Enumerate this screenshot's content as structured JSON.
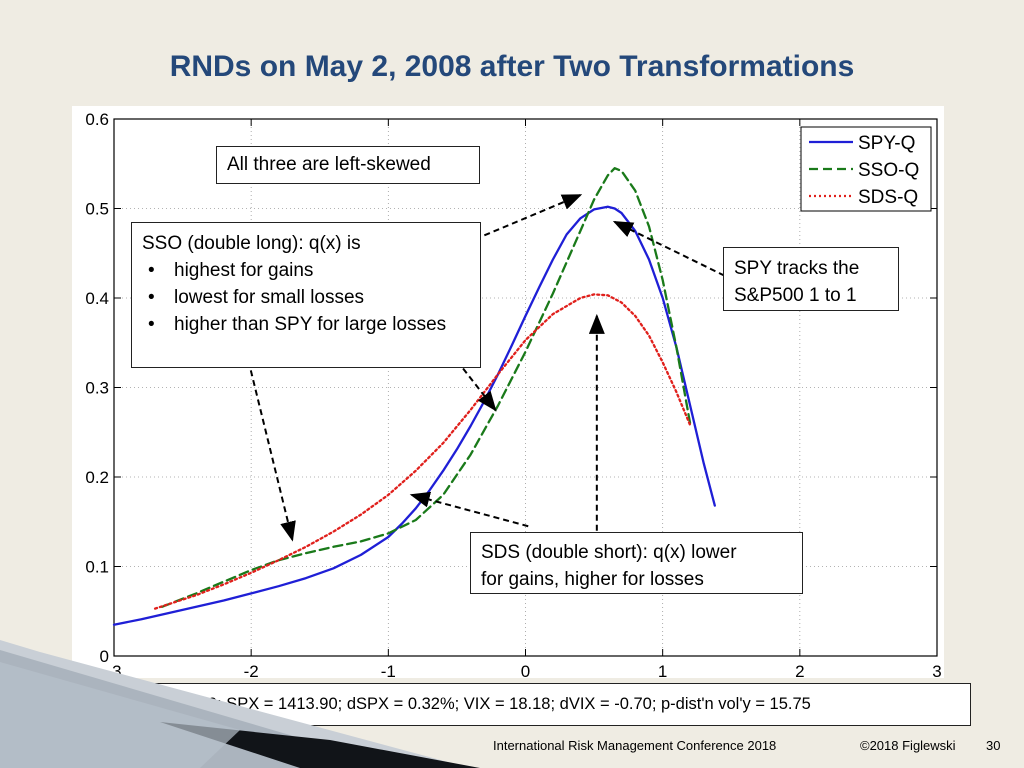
{
  "slide": {
    "title": "RNDs on May 2, 2008 after Two Transformations",
    "footer_conference": "International Risk Management Conference 2018",
    "footer_copyright": "©2018 Figlewski",
    "footer_page": "30",
    "stats_line": "02-May-2008;  T = 50;  SPX = 1413.90;  dSPX = 0.32%;  VIX = 18.18;  dVIX = -0.70;  p-dist'n vol'y =  15.75"
  },
  "callouts": {
    "skew": "All three are left-skewed",
    "sso_head": "SSO (double long): q(x) is",
    "sso_items": [
      "highest for gains",
      "lowest for small losses",
      "higher than SPY for large losses"
    ],
    "spy_line1": "SPY tracks the",
    "spy_line2": "S&P500 1 to 1",
    "sds_line1": "SDS (double short):  q(x) lower",
    "sds_line2": "for gains, higher for losses"
  },
  "colors": {
    "background": "#efece3",
    "title": "#24487a",
    "spy": "#1f1fd6",
    "sso": "#1a7a1a",
    "sds": "#e0201c"
  },
  "chart_data": {
    "type": "line",
    "title": "",
    "xlabel": "",
    "ylabel": "",
    "xlim": [
      -3,
      3
    ],
    "ylim": [
      0,
      0.6
    ],
    "xticks": [
      -3,
      -2,
      -1,
      0,
      1,
      2,
      3
    ],
    "yticks": [
      0,
      0.1,
      0.2,
      0.3,
      0.4,
      0.5,
      0.6
    ],
    "xtick_labels": [
      "-3",
      "-2",
      "-1",
      "0",
      "1",
      "2",
      "3"
    ],
    "ytick_labels": [
      "0",
      "0.1",
      "0.2",
      "0.3",
      "0.4",
      "0.5",
      "0.6"
    ],
    "grid": true,
    "legend_position": "top-right",
    "series": [
      {
        "name": "SPY-Q",
        "style": "solid",
        "x": [
          -3.0,
          -2.8,
          -2.6,
          -2.4,
          -2.2,
          -2.0,
          -1.8,
          -1.6,
          -1.4,
          -1.2,
          -1.0,
          -0.9,
          -0.8,
          -0.7,
          -0.6,
          -0.5,
          -0.4,
          -0.3,
          -0.2,
          -0.1,
          0.0,
          0.1,
          0.2,
          0.3,
          0.4,
          0.5,
          0.6,
          0.65,
          0.7,
          0.8,
          0.9,
          1.0,
          1.1,
          1.2,
          1.3,
          1.38
        ],
        "y": [
          0.035,
          0.041,
          0.048,
          0.055,
          0.062,
          0.07,
          0.078,
          0.087,
          0.098,
          0.113,
          0.133,
          0.148,
          0.165,
          0.185,
          0.207,
          0.231,
          0.257,
          0.285,
          0.315,
          0.347,
          0.38,
          0.412,
          0.443,
          0.471,
          0.489,
          0.499,
          0.502,
          0.5,
          0.495,
          0.475,
          0.443,
          0.4,
          0.345,
          0.28,
          0.215,
          0.168
        ]
      },
      {
        "name": "SSO-Q",
        "style": "dashed",
        "x": [
          -2.65,
          -2.4,
          -2.2,
          -2.0,
          -1.8,
          -1.6,
          -1.4,
          -1.2,
          -1.0,
          -0.8,
          -0.6,
          -0.4,
          -0.2,
          0.0,
          0.2,
          0.4,
          0.5,
          0.6,
          0.65,
          0.7,
          0.8,
          0.9,
          1.0,
          1.1,
          1.2
        ],
        "y": [
          0.055,
          0.07,
          0.083,
          0.096,
          0.107,
          0.115,
          0.122,
          0.128,
          0.137,
          0.152,
          0.18,
          0.225,
          0.28,
          0.34,
          0.405,
          0.475,
          0.51,
          0.537,
          0.545,
          0.542,
          0.52,
          0.48,
          0.42,
          0.345,
          0.26
        ]
      },
      {
        "name": "SDS-Q",
        "style": "dotted",
        "x": [
          -2.7,
          -2.4,
          -2.2,
          -2.0,
          -1.8,
          -1.6,
          -1.4,
          -1.2,
          -1.0,
          -0.8,
          -0.6,
          -0.4,
          -0.2,
          0.0,
          0.2,
          0.4,
          0.5,
          0.6,
          0.7,
          0.8,
          0.9,
          1.0,
          1.1,
          1.2
        ],
        "y": [
          0.053,
          0.068,
          0.08,
          0.093,
          0.107,
          0.122,
          0.139,
          0.158,
          0.18,
          0.207,
          0.238,
          0.275,
          0.315,
          0.353,
          0.382,
          0.4,
          0.404,
          0.403,
          0.395,
          0.38,
          0.358,
          0.328,
          0.295,
          0.258
        ]
      }
    ],
    "arrows": [
      {
        "from": [
          -0.3,
          0.47
        ],
        "to": [
          0.4,
          0.515
        ]
      },
      {
        "from": [
          1.45,
          0.425
        ],
        "to": [
          0.65,
          0.485
        ]
      },
      {
        "from": [
          -2.02,
          0.33
        ],
        "to": [
          -1.7,
          0.13
        ]
      },
      {
        "from": [
          -0.5,
          0.33
        ],
        "to": [
          -0.22,
          0.275
        ]
      },
      {
        "from": [
          0.02,
          0.145
        ],
        "to": [
          -0.83,
          0.18
        ]
      },
      {
        "from": [
          0.52,
          0.14
        ],
        "to": [
          0.52,
          0.38
        ]
      }
    ]
  }
}
